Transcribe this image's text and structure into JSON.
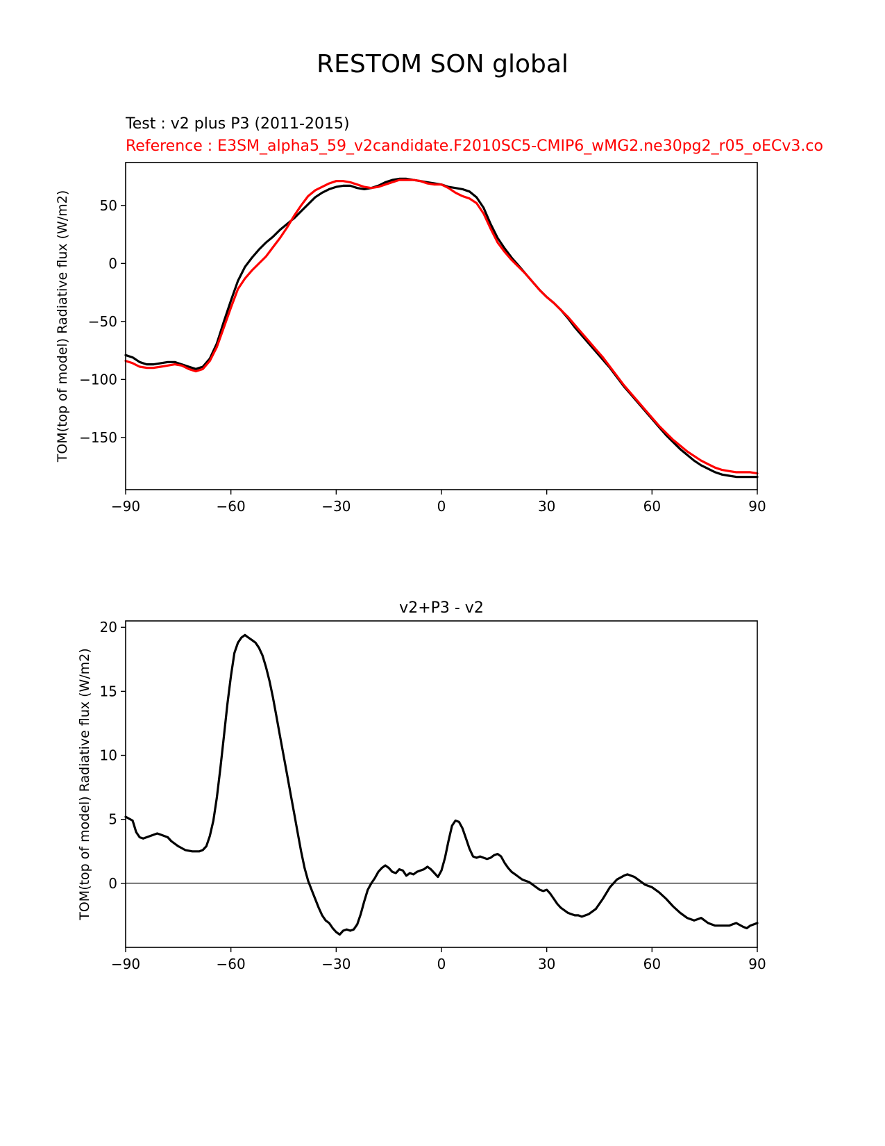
{
  "figure": {
    "title": "RESTOM SON global"
  },
  "colors": {
    "test": "#000000",
    "reference": "#ff0000",
    "zero_line": "#808080",
    "axes": "#000000"
  },
  "chart_data": [
    {
      "type": "line",
      "test_label": "Test : v2 plus P3 (2011-2015)",
      "reference_label": "Reference : E3SM_alpha5_59_v2candidate.F2010SC5-CMIP6_wMG2.ne30pg2_r05_oECv3.co",
      "ylabel": "TOM(top of model) Radiative flux (W/m2)",
      "xlim": [
        -90,
        90
      ],
      "ylim": [
        -195,
        87
      ],
      "xticks": [
        -90,
        -60,
        -30,
        0,
        30,
        60,
        90
      ],
      "xtick_labels": [
        "−90",
        "−60",
        "−30",
        "0",
        "30",
        "60",
        "90"
      ],
      "yticks": [
        -150,
        -100,
        -50,
        0,
        50
      ],
      "ytick_labels": [
        "−150",
        "−100",
        "−50",
        "0",
        "50"
      ],
      "series": [
        {
          "name": "Test",
          "x": [
            -90,
            -88,
            -86,
            -84,
            -82,
            -80,
            -78,
            -76,
            -74,
            -72,
            -70,
            -68,
            -66,
            -64,
            -62,
            -60,
            -58,
            -56,
            -54,
            -52,
            -50,
            -48,
            -46,
            -44,
            -42,
            -40,
            -38,
            -36,
            -34,
            -32,
            -30,
            -28,
            -26,
            -24,
            -22,
            -20,
            -18,
            -16,
            -14,
            -12,
            -10,
            -8,
            -6,
            -4,
            -2,
            0,
            2,
            4,
            6,
            8,
            10,
            12,
            14,
            16,
            18,
            20,
            22,
            24,
            26,
            28,
            30,
            32,
            34,
            36,
            38,
            40,
            42,
            44,
            46,
            48,
            50,
            52,
            54,
            56,
            58,
            60,
            62,
            64,
            66,
            68,
            70,
            72,
            74,
            76,
            78,
            80,
            82,
            84,
            86,
            88,
            90
          ],
          "values": [
            -79,
            -81,
            -85,
            -87,
            -87,
            -86,
            -85,
            -85,
            -87,
            -89,
            -91,
            -89,
            -82,
            -69,
            -50,
            -32,
            -15,
            -3,
            5,
            12,
            18,
            23,
            29,
            34,
            39,
            45,
            51,
            57,
            61,
            64,
            66,
            67,
            67,
            65,
            64,
            65,
            67,
            70,
            72,
            73,
            73,
            72,
            71,
            70,
            69,
            68,
            66,
            65,
            64,
            62,
            57,
            48,
            34,
            22,
            13,
            5,
            -2,
            -9,
            -16,
            -23,
            -29,
            -34,
            -40,
            -47,
            -55,
            -62,
            -69,
            -76,
            -83,
            -90,
            -98,
            -106,
            -113,
            -120,
            -127,
            -134,
            -141,
            -148,
            -154,
            -160,
            -165,
            -170,
            -174,
            -177,
            -180,
            -182,
            -183,
            -184,
            -184,
            -184,
            -184
          ]
        },
        {
          "name": "Reference",
          "x": [
            -90,
            -88,
            -86,
            -84,
            -82,
            -80,
            -78,
            -76,
            -74,
            -72,
            -70,
            -68,
            -66,
            -64,
            -62,
            -60,
            -58,
            -56,
            -54,
            -52,
            -50,
            -48,
            -46,
            -44,
            -42,
            -40,
            -38,
            -36,
            -34,
            -32,
            -30,
            -28,
            -26,
            -24,
            -22,
            -20,
            -18,
            -16,
            -14,
            -12,
            -10,
            -8,
            -6,
            -4,
            -2,
            0,
            2,
            4,
            6,
            8,
            10,
            12,
            14,
            16,
            18,
            20,
            22,
            24,
            26,
            28,
            30,
            32,
            34,
            36,
            38,
            40,
            42,
            44,
            46,
            48,
            50,
            52,
            54,
            56,
            58,
            60,
            62,
            64,
            66,
            68,
            70,
            72,
            74,
            76,
            78,
            80,
            82,
            84,
            86,
            88,
            90
          ],
          "values": [
            -84,
            -86,
            -89,
            -90,
            -90,
            -89,
            -88,
            -87,
            -88,
            -91,
            -93,
            -91,
            -84,
            -72,
            -55,
            -38,
            -22,
            -13,
            -6,
            0,
            6,
            14,
            22,
            31,
            41,
            50,
            58,
            63,
            66,
            69,
            71,
            71,
            70,
            68,
            66,
            65,
            66,
            68,
            70,
            72,
            72,
            72,
            71,
            69,
            68,
            68,
            65,
            61,
            58,
            56,
            52,
            43,
            30,
            18,
            10,
            3,
            -3,
            -9,
            -16,
            -23,
            -29,
            -34,
            -40,
            -46,
            -53,
            -60,
            -67,
            -74,
            -81,
            -89,
            -97,
            -105,
            -112,
            -119,
            -126,
            -133,
            -140,
            -146,
            -152,
            -157,
            -162,
            -166,
            -170,
            -173,
            -176,
            -178,
            -179,
            -180,
            -180,
            -180,
            -181
          ]
        }
      ]
    },
    {
      "type": "line",
      "title": "v2+P3 - v2",
      "ylabel": "TOM(top of model) Radiative flux (W/m2)",
      "xlim": [
        -90,
        90
      ],
      "ylim": [
        -5,
        20.5
      ],
      "xticks": [
        -90,
        -60,
        -30,
        0,
        30,
        60,
        90
      ],
      "xtick_labels": [
        "−90",
        "−60",
        "−30",
        "0",
        "30",
        "60",
        "90"
      ],
      "yticks": [
        0,
        5,
        10,
        15,
        20
      ],
      "ytick_labels": [
        "0",
        "5",
        "10",
        "15",
        "20"
      ],
      "zero_line": 0,
      "series": [
        {
          "name": "Difference",
          "x": [
            -90,
            -88,
            -87,
            -86,
            -85,
            -83,
            -81,
            -80,
            -78,
            -77,
            -75,
            -73,
            -71,
            -69,
            -68,
            -67,
            -66,
            -65,
            -64,
            -63,
            -62,
            -61,
            -60,
            -59,
            -58,
            -57,
            -56,
            -55,
            -54,
            -53,
            -52,
            -51,
            -50,
            -49,
            -48,
            -47,
            -46,
            -45,
            -44,
            -43,
            -42,
            -41,
            -40,
            -39,
            -38,
            -37,
            -36,
            -35,
            -34,
            -33,
            -32,
            -31,
            -30,
            -29,
            -28,
            -27,
            -26,
            -25,
            -24,
            -23,
            -22,
            -21,
            -20,
            -19,
            -18,
            -17,
            -16,
            -15,
            -14,
            -13,
            -12,
            -11,
            -10,
            -9,
            -8,
            -7,
            -6,
            -5,
            -4,
            -3,
            -2,
            -1,
            0,
            1,
            2,
            3,
            4,
            5,
            6,
            7,
            8,
            9,
            10,
            11,
            12,
            13,
            14,
            15,
            16,
            17,
            18,
            19,
            20,
            21,
            22,
            23,
            24,
            25,
            26,
            27,
            28,
            29,
            30,
            31,
            32,
            33,
            34,
            35,
            36,
            37,
            38,
            39,
            40,
            42,
            44,
            46,
            48,
            50,
            52,
            53,
            54,
            55,
            56,
            57,
            58,
            60,
            62,
            64,
            66,
            68,
            70,
            72,
            73,
            74,
            76,
            78,
            80,
            82,
            83,
            84,
            86,
            87,
            88,
            90
          ],
          "values": [
            5.2,
            4.9,
            4.0,
            3.6,
            3.5,
            3.7,
            3.9,
            3.8,
            3.6,
            3.3,
            2.9,
            2.6,
            2.5,
            2.5,
            2.6,
            2.9,
            3.7,
            4.9,
            6.7,
            9.0,
            11.5,
            14.0,
            16.2,
            18.0,
            18.8,
            19.2,
            19.4,
            19.2,
            19.0,
            18.8,
            18.4,
            17.8,
            16.9,
            15.8,
            14.5,
            13.0,
            11.5,
            10.0,
            8.5,
            7.0,
            5.5,
            4.0,
            2.5,
            1.2,
            0.2,
            -0.5,
            -1.2,
            -1.9,
            -2.5,
            -2.9,
            -3.1,
            -3.5,
            -3.8,
            -4.0,
            -3.7,
            -3.6,
            -3.7,
            -3.6,
            -3.2,
            -2.4,
            -1.4,
            -0.5,
            0.0,
            0.4,
            0.9,
            1.2,
            1.4,
            1.2,
            0.9,
            0.8,
            1.1,
            1.0,
            0.6,
            0.8,
            0.7,
            0.9,
            1.0,
            1.1,
            1.3,
            1.1,
            0.8,
            0.5,
            1.0,
            2.0,
            3.3,
            4.5,
            4.9,
            4.8,
            4.3,
            3.5,
            2.7,
            2.1,
            2.0,
            2.1,
            2.0,
            1.9,
            2.0,
            2.2,
            2.3,
            2.1,
            1.6,
            1.2,
            0.9,
            0.7,
            0.5,
            0.3,
            0.2,
            0.1,
            -0.1,
            -0.3,
            -0.5,
            -0.6,
            -0.5,
            -0.8,
            -1.2,
            -1.6,
            -1.9,
            -2.1,
            -2.3,
            -2.4,
            -2.5,
            -2.5,
            -2.6,
            -2.4,
            -2.0,
            -1.2,
            -0.3,
            0.3,
            0.6,
            0.7,
            0.6,
            0.5,
            0.3,
            0.1,
            -0.1,
            -0.3,
            -0.7,
            -1.2,
            -1.8,
            -2.3,
            -2.7,
            -2.9,
            -2.8,
            -2.7,
            -3.1,
            -3.3,
            -3.3,
            -3.3,
            -3.2,
            -3.1,
            -3.4,
            -3.5,
            -3.3,
            -3.1
          ]
        }
      ]
    }
  ]
}
